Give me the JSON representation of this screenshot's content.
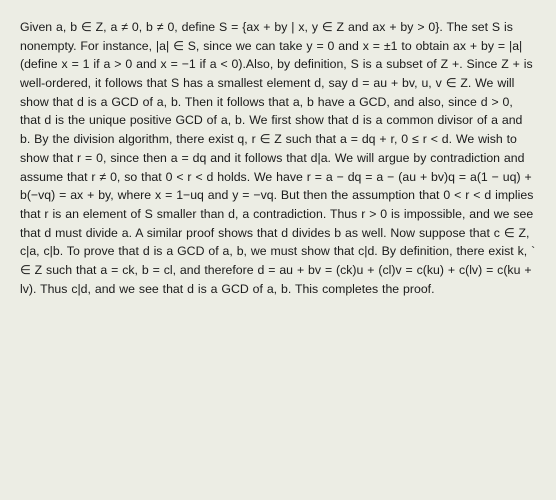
{
  "proof": {
    "text": "Given a, b ∈ Z, a ≠ 0, b ≠ 0, define S = {ax + by | x, y ∈ Z and ax + by > 0}. The set S is nonempty. For instance, |a| ∈ S, since we can take y = 0 and x = ±1 to obtain ax + by = |a| (define x = 1 if a > 0 and x = −1 if a < 0).Also, by definition, S is a subset of Z +. Since Z + is well-ordered, it follows that S has a smallest element d, say d = au + bv, u, v ∈ Z. We will show that d is a GCD of a, b. Then it follows that a, b have a GCD, and also, since d > 0, that d is the unique positive GCD of a, b. We first show that d is a common divisor of a and b. By the division algorithm, there exist q, r ∈ Z such that a = dq + r, 0 ≤ r < d. We wish to show that r = 0, since then a = dq and it follows that d|a. We will argue by contradiction and assume that r ≠ 0, so that 0 < r < d holds. We have r = a − dq = a − (au + bv)q = a(1 − uq) + b(−vq) = ax + by, where x = 1−uq and y = −vq. But then the assumption that 0 < r < d implies that r is an element of S smaller than d, a contradiction. Thus r > 0 is impossible, and we see that d must divide a. A similar proof shows that d divides b as well. Now suppose that c ∈ Z, c|a, c|b. To prove that d is a GCD of a, b, we must show that c|d. By definition, there exist k, ` ∈ Z such that a = ck, b = cl, and therefore d = au + bv = (ck)u + (cl)v = c(ku) + c(lv) = c(ku + lv). Thus c|d, and we see that d is a GCD of a, b. This completes the proof.",
    "background_color": "#ecede4",
    "text_color": "#1a1a1a",
    "font_family": "Verdana, Geneva, sans-serif",
    "font_size": 12.3,
    "line_height": 1.52
  }
}
